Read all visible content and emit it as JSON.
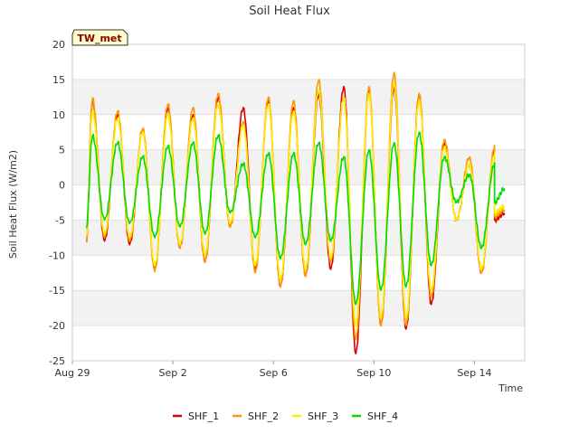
{
  "chart_data": {
    "type": "line",
    "title": "Soil Heat Flux",
    "xlabel": "Time",
    "ylabel": "Soil Heat Flux (W/m2)",
    "station_label": "TW_met",
    "ylim": [
      -25,
      20
    ],
    "xlim_days": [
      0,
      18
    ],
    "y_ticks": [
      -25,
      -20,
      -15,
      -10,
      -5,
      0,
      5,
      10,
      15,
      20
    ],
    "x_ticks": [
      {
        "label": "Aug 29",
        "day": 0
      },
      {
        "label": "Sep 2",
        "day": 4
      },
      {
        "label": "Sep 6",
        "day": 8
      },
      {
        "label": "Sep 10",
        "day": 12
      },
      {
        "label": "Sep 14",
        "day": 16
      }
    ],
    "series": [
      {
        "name": "SHF_1",
        "color": "#dd0000",
        "daily_max": [
          12,
          10,
          8,
          11,
          10,
          12.5,
          11,
          12,
          11,
          13,
          14,
          13.5,
          14,
          13,
          6,
          3,
          5
        ],
        "daily_min": [
          -8,
          -8.5,
          -12,
          -9,
          -11,
          -6,
          -12,
          -14.5,
          -13,
          -12,
          -24,
          -20,
          -20.5,
          -17,
          -5,
          -12.5,
          -5
        ],
        "start": -8,
        "end": -4
      },
      {
        "name": "SHF_2",
        "color": "#ff9900",
        "daily_max": [
          12.3,
          10.5,
          8,
          11.5,
          11,
          13,
          9,
          12.5,
          12,
          15,
          12.5,
          14,
          16,
          13,
          6.5,
          4,
          5.5
        ],
        "daily_min": [
          -7.5,
          -8,
          -12.3,
          -9,
          -11,
          -6,
          -12.5,
          -14.5,
          -13,
          -11,
          -22,
          -20,
          -20,
          -16,
          -5,
          -12.5,
          -4.5
        ],
        "start": -8,
        "end": -3.5
      },
      {
        "name": "SHF_3",
        "color": "#ffee00",
        "daily_max": [
          10.5,
          9.5,
          7.5,
          10,
          9.5,
          11.5,
          8.5,
          11.5,
          10.5,
          13.5,
          12.5,
          13,
          14.5,
          12,
          5.5,
          3,
          4.5
        ],
        "daily_min": [
          -7,
          -7.5,
          -11.5,
          -8.5,
          -10,
          -5.5,
          -11.5,
          -13.5,
          -12,
          -10.5,
          -20,
          -19,
          -19,
          -15,
          -5,
          -12,
          -4
        ],
        "start": -7,
        "end": -3
      },
      {
        "name": "SHF_4",
        "color": "#00dd00",
        "daily_max": [
          7,
          6,
          4,
          5.5,
          6,
          7,
          3,
          4.5,
          4.5,
          6,
          4,
          5,
          6,
          7.5,
          4,
          1.5,
          3
        ],
        "daily_min": [
          -5,
          -5.5,
          -7.5,
          -6,
          -7,
          -4,
          -7.5,
          -10.5,
          -8.5,
          -8,
          -17,
          -15,
          -14.5,
          -11.5,
          -2.5,
          -9,
          -2.5
        ],
        "start": -6,
        "end": -0.5
      }
    ],
    "legend_position": "bottom-center",
    "grid": "horizontal bands"
  }
}
